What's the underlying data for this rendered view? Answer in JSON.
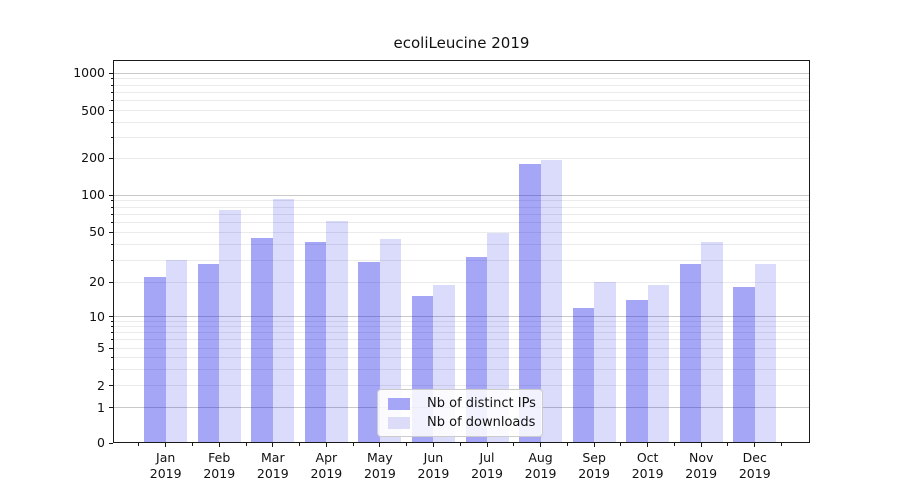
{
  "chart_data": {
    "type": "bar",
    "title": "ecoliLeucine 2019",
    "categories": [
      "Jan",
      "Feb",
      "Mar",
      "Apr",
      "May",
      "Jun",
      "Jul",
      "Aug",
      "Sep",
      "Oct",
      "Nov",
      "Dec"
    ],
    "category_year": "2019",
    "series": [
      {
        "name": "Nb of distinct IPs",
        "color_hex": "#a6a6f6",
        "fill_rgba": "rgba(0,0,230,0.35)",
        "values": [
          22,
          28,
          45,
          42,
          29,
          15,
          32,
          180,
          12,
          14,
          28,
          18
        ]
      },
      {
        "name": "Nb of downloads",
        "color_hex": "#dcdcf9",
        "fill_rgba": "rgba(0,0,230,0.14)",
        "values": [
          30,
          76,
          92,
          62,
          44,
          19,
          49,
          192,
          20,
          19,
          42,
          28
        ]
      }
    ],
    "yscale": "symlog",
    "y_ticks": [
      1000,
      500,
      200,
      100,
      50,
      20,
      10,
      5,
      2,
      1,
      0
    ],
    "y_minor_gridlines": [
      3,
      4,
      6,
      7,
      8,
      9,
      30,
      40,
      60,
      70,
      80,
      90,
      300,
      400,
      600,
      700,
      800,
      900
    ],
    "y_major_decades": [
      1,
      10,
      100,
      1000
    ],
    "ylim": [
      0,
      1280
    ],
    "grid": true,
    "legend_position": "lower center"
  }
}
